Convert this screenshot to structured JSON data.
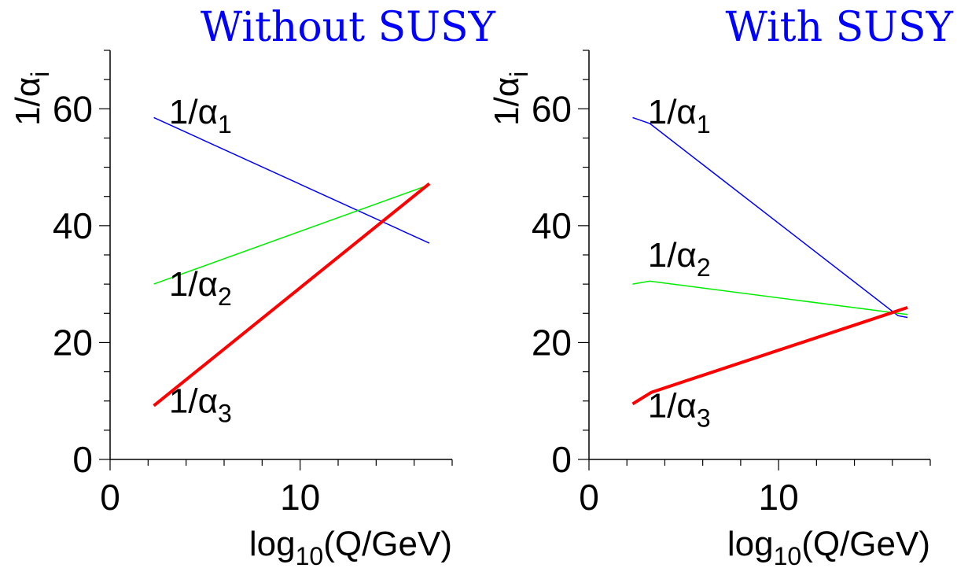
{
  "chart_data": [
    {
      "type": "line",
      "title": "Without SUSY",
      "xlabel": "log",
      "xlabel_sub": "10",
      "xlabel_tail": "(Q/GeV)",
      "ylabel": "1/α",
      "ylabel_sub": "i",
      "xlim": [
        0,
        18
      ],
      "ylim": [
        0,
        70
      ],
      "x_ticks": [
        0,
        10
      ],
      "y_ticks": [
        0,
        20,
        40,
        60
      ],
      "title_color": "#0000ff",
      "series": [
        {
          "name": "1/α1",
          "label_main": "1/α",
          "label_sub": "1",
          "color": "#0000ff",
          "width": 1.5,
          "x": [
            2.3,
            16.8
          ],
          "y": [
            58.5,
            37.0
          ],
          "label_pos": [
            3.1,
            57.5
          ]
        },
        {
          "name": "1/α2",
          "label_main": "1/α",
          "label_sub": "2",
          "color": "#00ee00",
          "width": 1.5,
          "x": [
            2.3,
            16.8
          ],
          "y": [
            30.0,
            47.0
          ],
          "label_pos": [
            3.1,
            28.0
          ]
        },
        {
          "name": "1/α3",
          "label_main": "1/α",
          "label_sub": "3",
          "color": "#ff0000",
          "width": 4,
          "x": [
            2.3,
            16.8
          ],
          "y": [
            9.2,
            47.2
          ],
          "label_pos": [
            3.1,
            8.0
          ]
        }
      ]
    },
    {
      "type": "line",
      "title": "With SUSY",
      "xlabel": "log",
      "xlabel_sub": "10",
      "xlabel_tail": "(Q/GeV)",
      "ylabel": "1/α",
      "ylabel_sub": "i",
      "xlim": [
        0,
        18
      ],
      "ylim": [
        0,
        70
      ],
      "x_ticks": [
        0,
        10
      ],
      "y_ticks": [
        0,
        20,
        40,
        60
      ],
      "title_color": "#0000ff",
      "series": [
        {
          "name": "1/α1",
          "label_main": "1/α",
          "label_sub": "1",
          "color": "#0000ff",
          "width": 1.5,
          "x": [
            2.3,
            3.2,
            16.3,
            16.8
          ],
          "y": [
            58.5,
            57.5,
            24.6,
            24.3
          ],
          "label_pos": [
            3.1,
            57.5
          ]
        },
        {
          "name": "1/α2",
          "label_main": "1/α",
          "label_sub": "2",
          "color": "#00ee00",
          "width": 1.5,
          "x": [
            2.3,
            3.2,
            16.8
          ],
          "y": [
            30.0,
            30.5,
            24.8
          ],
          "label_pos": [
            3.1,
            33.0
          ]
        },
        {
          "name": "1/α3",
          "label_main": "1/α",
          "label_sub": "3",
          "color": "#ff0000",
          "width": 4,
          "x": [
            2.3,
            3.3,
            16.8
          ],
          "y": [
            9.5,
            11.5,
            26.0
          ],
          "label_pos": [
            3.1,
            7.2
          ]
        }
      ]
    }
  ]
}
